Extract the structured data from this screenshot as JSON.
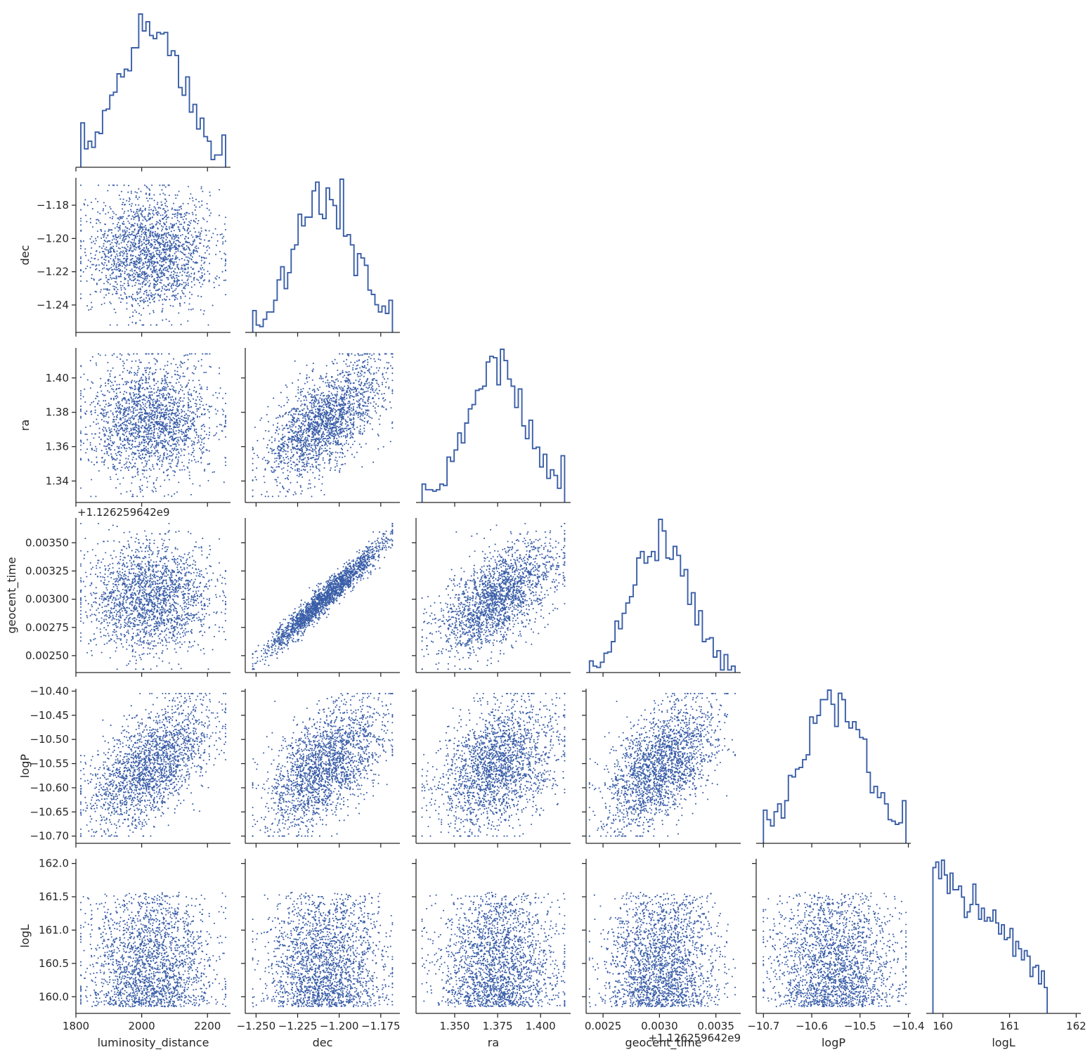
{
  "chart_data": {
    "type": "scatter",
    "layout": "corner-pairplot",
    "color": "#4c72b0",
    "variables": [
      {
        "name": "luminosity_distance",
        "label": "luminosity_distance",
        "label_bottom": true,
        "range": [
          1800,
          2270
        ],
        "ticks": [
          1800,
          2000,
          2200
        ],
        "tick_labels": [
          "1800",
          "2000",
          "2200"
        ],
        "mean": 2030,
        "sd": 95
      },
      {
        "name": "dec",
        "label": "dec",
        "label_left": true,
        "label_bottom": true,
        "range": [
          -1.2565,
          -1.1635
        ],
        "ticks": [
          -1.25,
          -1.225,
          -1.2,
          -1.175
        ],
        "tick_labels": [
          "−1.250",
          "−1.225",
          "−1.200",
          "−1.175"
        ],
        "left_ticks": [
          -1.24,
          -1.22,
          -1.2,
          -1.18
        ],
        "left_tick_labels": [
          "−1.24",
          "−1.22",
          "−1.20",
          "−1.18"
        ],
        "mean": -1.208,
        "sd": 0.018
      },
      {
        "name": "ra",
        "label": "ra",
        "label_left": true,
        "label_bottom": true,
        "range": [
          1.3275,
          1.4175
        ],
        "ticks": [
          1.35,
          1.375,
          1.4
        ],
        "tick_labels": [
          "1.350",
          "1.375",
          "1.400"
        ],
        "left_ticks": [
          1.34,
          1.36,
          1.38,
          1.4
        ],
        "left_tick_labels": [
          "1.34",
          "1.36",
          "1.38",
          "1.40"
        ],
        "mean": 1.375,
        "sd": 0.017
      },
      {
        "name": "geocent_time",
        "label": "geocent_time",
        "label_left": true,
        "label_bottom": true,
        "offset_text": "+1.126259642e9",
        "range": [
          0.00235,
          0.00372
        ],
        "ticks": [
          0.0025,
          0.003,
          0.0035
        ],
        "tick_labels": [
          "0.0025",
          "0.0030",
          "0.0035"
        ],
        "left_ticks": [
          0.0025,
          0.00275,
          0.003,
          0.00325,
          0.0035
        ],
        "left_tick_labels": [
          "0.00250",
          "0.00275",
          "0.00300",
          "0.00325",
          "0.00350"
        ],
        "mean": 0.00302,
        "sd": 0.00025
      },
      {
        "name": "logP",
        "label": "logP",
        "label_left": true,
        "label_bottom": true,
        "range": [
          -10.715,
          -10.395
        ],
        "ticks": [
          -10.7,
          -10.6,
          -10.5,
          -10.4
        ],
        "tick_labels": [
          "−10.7",
          "−10.6",
          "−10.5",
          "−10.4"
        ],
        "left_ticks": [
          -10.7,
          -10.65,
          -10.6,
          -10.55,
          -10.5,
          -10.45,
          -10.4
        ],
        "left_tick_labels": [
          "−10.70",
          "−10.65",
          "−10.60",
          "−10.55",
          "−10.50",
          "−10.45",
          "−10.40"
        ],
        "mean": -10.552,
        "sd": 0.065
      },
      {
        "name": "logL",
        "label": "logL",
        "label_left": true,
        "label_bottom": true,
        "range": [
          159.75,
          162.07
        ],
        "ticks": [
          160,
          161,
          162
        ],
        "tick_labels": [
          "160",
          "161",
          "162"
        ],
        "left_ticks": [
          160,
          160.5,
          161,
          161.5,
          162
        ],
        "left_tick_labels": [
          "160.0",
          "160.5",
          "161.0",
          "161.5",
          "162.0"
        ],
        "min": 159.85,
        "max": 162.0
      }
    ],
    "correlations": {
      "dec-ra": 0.6,
      "dec-geocent_time": 0.97,
      "ra-geocent_time": 0.6,
      "luminosity_distance-logP": 0.55,
      "dec-logP": 0.6,
      "ra-logP": 0.4,
      "geocent_time-logP": 0.6
    },
    "samples": 2000,
    "histogram_bins": 40,
    "histogram_style": "step"
  }
}
